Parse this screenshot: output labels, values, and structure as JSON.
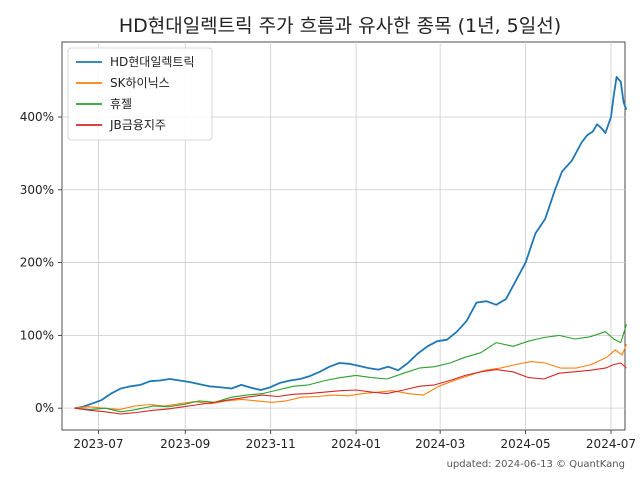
{
  "chart_data": {
    "type": "line",
    "title": "HD현대일렉트릭 주가 흐름과 유사한 종목 (1년, 5일선)",
    "footer": "updated: 2024-06-13 © QuantKang",
    "x_tick_labels": [
      "2023-07",
      "2023-09",
      "2023-11",
      "2024-01",
      "2024-03",
      "2024-05",
      "2024-07"
    ],
    "x_ticks": [
      "2023-07-01",
      "2023-09-01",
      "2023-11-01",
      "2024-01-01",
      "2024-03-01",
      "2024-05-01",
      "2024-07-01"
    ],
    "xlim": [
      "2023-06-05",
      "2024-07-11"
    ],
    "y_tick_labels": [
      "0%",
      "100%",
      "200%",
      "300%",
      "400%"
    ],
    "y_ticks": [
      0,
      100,
      200,
      300,
      400
    ],
    "ylim": [
      -30,
      503
    ],
    "grid": true,
    "legend_position": "top-left",
    "series": [
      {
        "name": "HD현대일렉트릭",
        "color": "#1f77b4",
        "points": [
          [
            "2023-06-14",
            0
          ],
          [
            "2023-06-20",
            2
          ],
          [
            "2023-06-26",
            6
          ],
          [
            "2023-07-03",
            11
          ],
          [
            "2023-07-10",
            20
          ],
          [
            "2023-07-17",
            27
          ],
          [
            "2023-07-24",
            30
          ],
          [
            "2023-07-31",
            32
          ],
          [
            "2023-08-07",
            37
          ],
          [
            "2023-08-14",
            38
          ],
          [
            "2023-08-21",
            40
          ],
          [
            "2023-08-28",
            38
          ],
          [
            "2023-09-04",
            36
          ],
          [
            "2023-09-11",
            33
          ],
          [
            "2023-09-18",
            30
          ],
          [
            "2023-09-25",
            29
          ],
          [
            "2023-10-04",
            27
          ],
          [
            "2023-10-11",
            32
          ],
          [
            "2023-10-18",
            28
          ],
          [
            "2023-10-25",
            25
          ],
          [
            "2023-11-01",
            29
          ],
          [
            "2023-11-08",
            35
          ],
          [
            "2023-11-15",
            38
          ],
          [
            "2023-11-22",
            40
          ],
          [
            "2023-11-29",
            44
          ],
          [
            "2023-12-06",
            50
          ],
          [
            "2023-12-13",
            57
          ],
          [
            "2023-12-20",
            62
          ],
          [
            "2023-12-27",
            61
          ],
          [
            "2024-01-03",
            58
          ],
          [
            "2024-01-10",
            55
          ],
          [
            "2024-01-17",
            53
          ],
          [
            "2024-01-24",
            57
          ],
          [
            "2024-01-31",
            52
          ],
          [
            "2024-02-07",
            62
          ],
          [
            "2024-02-14",
            75
          ],
          [
            "2024-02-21",
            85
          ],
          [
            "2024-02-28",
            92
          ],
          [
            "2024-03-06",
            94
          ],
          [
            "2024-03-13",
            105
          ],
          [
            "2024-03-20",
            120
          ],
          [
            "2024-03-27",
            145
          ],
          [
            "2024-04-03",
            147
          ],
          [
            "2024-04-10",
            142
          ],
          [
            "2024-04-17",
            150
          ],
          [
            "2024-04-24",
            175
          ],
          [
            "2024-05-01",
            200
          ],
          [
            "2024-05-08",
            240
          ],
          [
            "2024-05-15",
            260
          ],
          [
            "2024-05-22",
            300
          ],
          [
            "2024-05-27",
            325
          ],
          [
            "2024-06-03",
            340
          ],
          [
            "2024-06-10",
            365
          ],
          [
            "2024-06-14",
            375
          ],
          [
            "2024-06-18",
            380
          ],
          [
            "2024-06-21",
            390
          ],
          [
            "2024-06-24",
            385
          ],
          [
            "2024-06-27",
            378
          ],
          [
            "2024-07-01",
            400
          ],
          [
            "2024-07-03",
            430
          ],
          [
            "2024-07-05",
            455
          ],
          [
            "2024-07-08",
            448
          ],
          [
            "2024-07-10",
            420
          ],
          [
            "2024-07-12",
            410
          ]
        ]
      },
      {
        "name": "SK하이닉스",
        "color": "#ff7f0e",
        "points": [
          [
            "2023-06-14",
            0
          ],
          [
            "2023-06-24",
            2
          ],
          [
            "2023-07-05",
            0
          ],
          [
            "2023-07-16",
            -2
          ],
          [
            "2023-07-27",
            3
          ],
          [
            "2023-08-07",
            5
          ],
          [
            "2023-08-17",
            3
          ],
          [
            "2023-08-28",
            6
          ],
          [
            "2023-09-08",
            9
          ],
          [
            "2023-09-19",
            6
          ],
          [
            "2023-09-30",
            10
          ],
          [
            "2023-10-11",
            12
          ],
          [
            "2023-10-22",
            10
          ],
          [
            "2023-11-02",
            8
          ],
          [
            "2023-11-12",
            10
          ],
          [
            "2023-11-23",
            15
          ],
          [
            "2023-12-04",
            16
          ],
          [
            "2023-12-15",
            18
          ],
          [
            "2023-12-26",
            17
          ],
          [
            "2024-01-06",
            20
          ],
          [
            "2024-01-17",
            22
          ],
          [
            "2024-01-27",
            24
          ],
          [
            "2024-02-07",
            20
          ],
          [
            "2024-02-18",
            18
          ],
          [
            "2024-02-29",
            30
          ],
          [
            "2024-03-11",
            38
          ],
          [
            "2024-03-22",
            45
          ],
          [
            "2024-04-02",
            52
          ],
          [
            "2024-04-13",
            55
          ],
          [
            "2024-04-24",
            60
          ],
          [
            "2024-05-05",
            64
          ],
          [
            "2024-05-15",
            62
          ],
          [
            "2024-05-26",
            55
          ],
          [
            "2024-06-06",
            55
          ],
          [
            "2024-06-17",
            60
          ],
          [
            "2024-06-28",
            70
          ],
          [
            "2024-07-04",
            80
          ],
          [
            "2024-07-09",
            73
          ],
          [
            "2024-07-12",
            88
          ]
        ]
      },
      {
        "name": "휴젤",
        "color": "#2ca02c",
        "points": [
          [
            "2023-06-14",
            0
          ],
          [
            "2023-06-25",
            -2
          ],
          [
            "2023-07-06",
            0
          ],
          [
            "2023-07-17",
            -5
          ],
          [
            "2023-07-28",
            -2
          ],
          [
            "2023-08-09",
            3
          ],
          [
            "2023-08-20",
            2
          ],
          [
            "2023-08-31",
            5
          ],
          [
            "2023-09-11",
            10
          ],
          [
            "2023-09-22",
            8
          ],
          [
            "2023-10-04",
            15
          ],
          [
            "2023-10-15",
            18
          ],
          [
            "2023-10-26",
            20
          ],
          [
            "2023-11-06",
            25
          ],
          [
            "2023-11-17",
            30
          ],
          [
            "2023-11-28",
            32
          ],
          [
            "2023-12-10",
            38
          ],
          [
            "2023-12-21",
            42
          ],
          [
            "2024-01-01",
            45
          ],
          [
            "2024-01-12",
            42
          ],
          [
            "2024-01-23",
            40
          ],
          [
            "2024-02-04",
            48
          ],
          [
            "2024-02-15",
            55
          ],
          [
            "2024-02-26",
            57
          ],
          [
            "2024-03-08",
            62
          ],
          [
            "2024-03-19",
            70
          ],
          [
            "2024-03-30",
            76
          ],
          [
            "2024-04-10",
            90
          ],
          [
            "2024-04-22",
            85
          ],
          [
            "2024-05-03",
            92
          ],
          [
            "2024-05-14",
            97
          ],
          [
            "2024-05-25",
            100
          ],
          [
            "2024-06-05",
            95
          ],
          [
            "2024-06-16",
            98
          ],
          [
            "2024-06-27",
            105
          ],
          [
            "2024-07-03",
            95
          ],
          [
            "2024-07-08",
            90
          ],
          [
            "2024-07-12",
            115
          ]
        ]
      },
      {
        "name": "JB금융지주",
        "color": "#d62728",
        "points": [
          [
            "2023-06-14",
            0
          ],
          [
            "2023-06-25",
            -3
          ],
          [
            "2023-07-06",
            -5
          ],
          [
            "2023-07-17",
            -8
          ],
          [
            "2023-07-28",
            -6
          ],
          [
            "2023-08-09",
            -3
          ],
          [
            "2023-08-20",
            -1
          ],
          [
            "2023-08-31",
            2
          ],
          [
            "2023-09-11",
            5
          ],
          [
            "2023-09-22",
            8
          ],
          [
            "2023-10-04",
            12
          ],
          [
            "2023-10-15",
            15
          ],
          [
            "2023-10-26",
            18
          ],
          [
            "2023-11-06",
            16
          ],
          [
            "2023-11-17",
            19
          ],
          [
            "2023-11-28",
            20
          ],
          [
            "2023-12-10",
            22
          ],
          [
            "2023-12-21",
            24
          ],
          [
            "2024-01-01",
            25
          ],
          [
            "2024-01-12",
            22
          ],
          [
            "2024-01-23",
            20
          ],
          [
            "2024-02-04",
            25
          ],
          [
            "2024-02-15",
            30
          ],
          [
            "2024-02-26",
            32
          ],
          [
            "2024-03-08",
            38
          ],
          [
            "2024-03-19",
            45
          ],
          [
            "2024-03-30",
            50
          ],
          [
            "2024-04-10",
            53
          ],
          [
            "2024-04-22",
            50
          ],
          [
            "2024-05-03",
            42
          ],
          [
            "2024-05-14",
            40
          ],
          [
            "2024-05-25",
            48
          ],
          [
            "2024-06-05",
            50
          ],
          [
            "2024-06-16",
            52
          ],
          [
            "2024-06-27",
            55
          ],
          [
            "2024-07-03",
            60
          ],
          [
            "2024-07-08",
            62
          ],
          [
            "2024-07-12",
            55
          ]
        ]
      }
    ]
  }
}
